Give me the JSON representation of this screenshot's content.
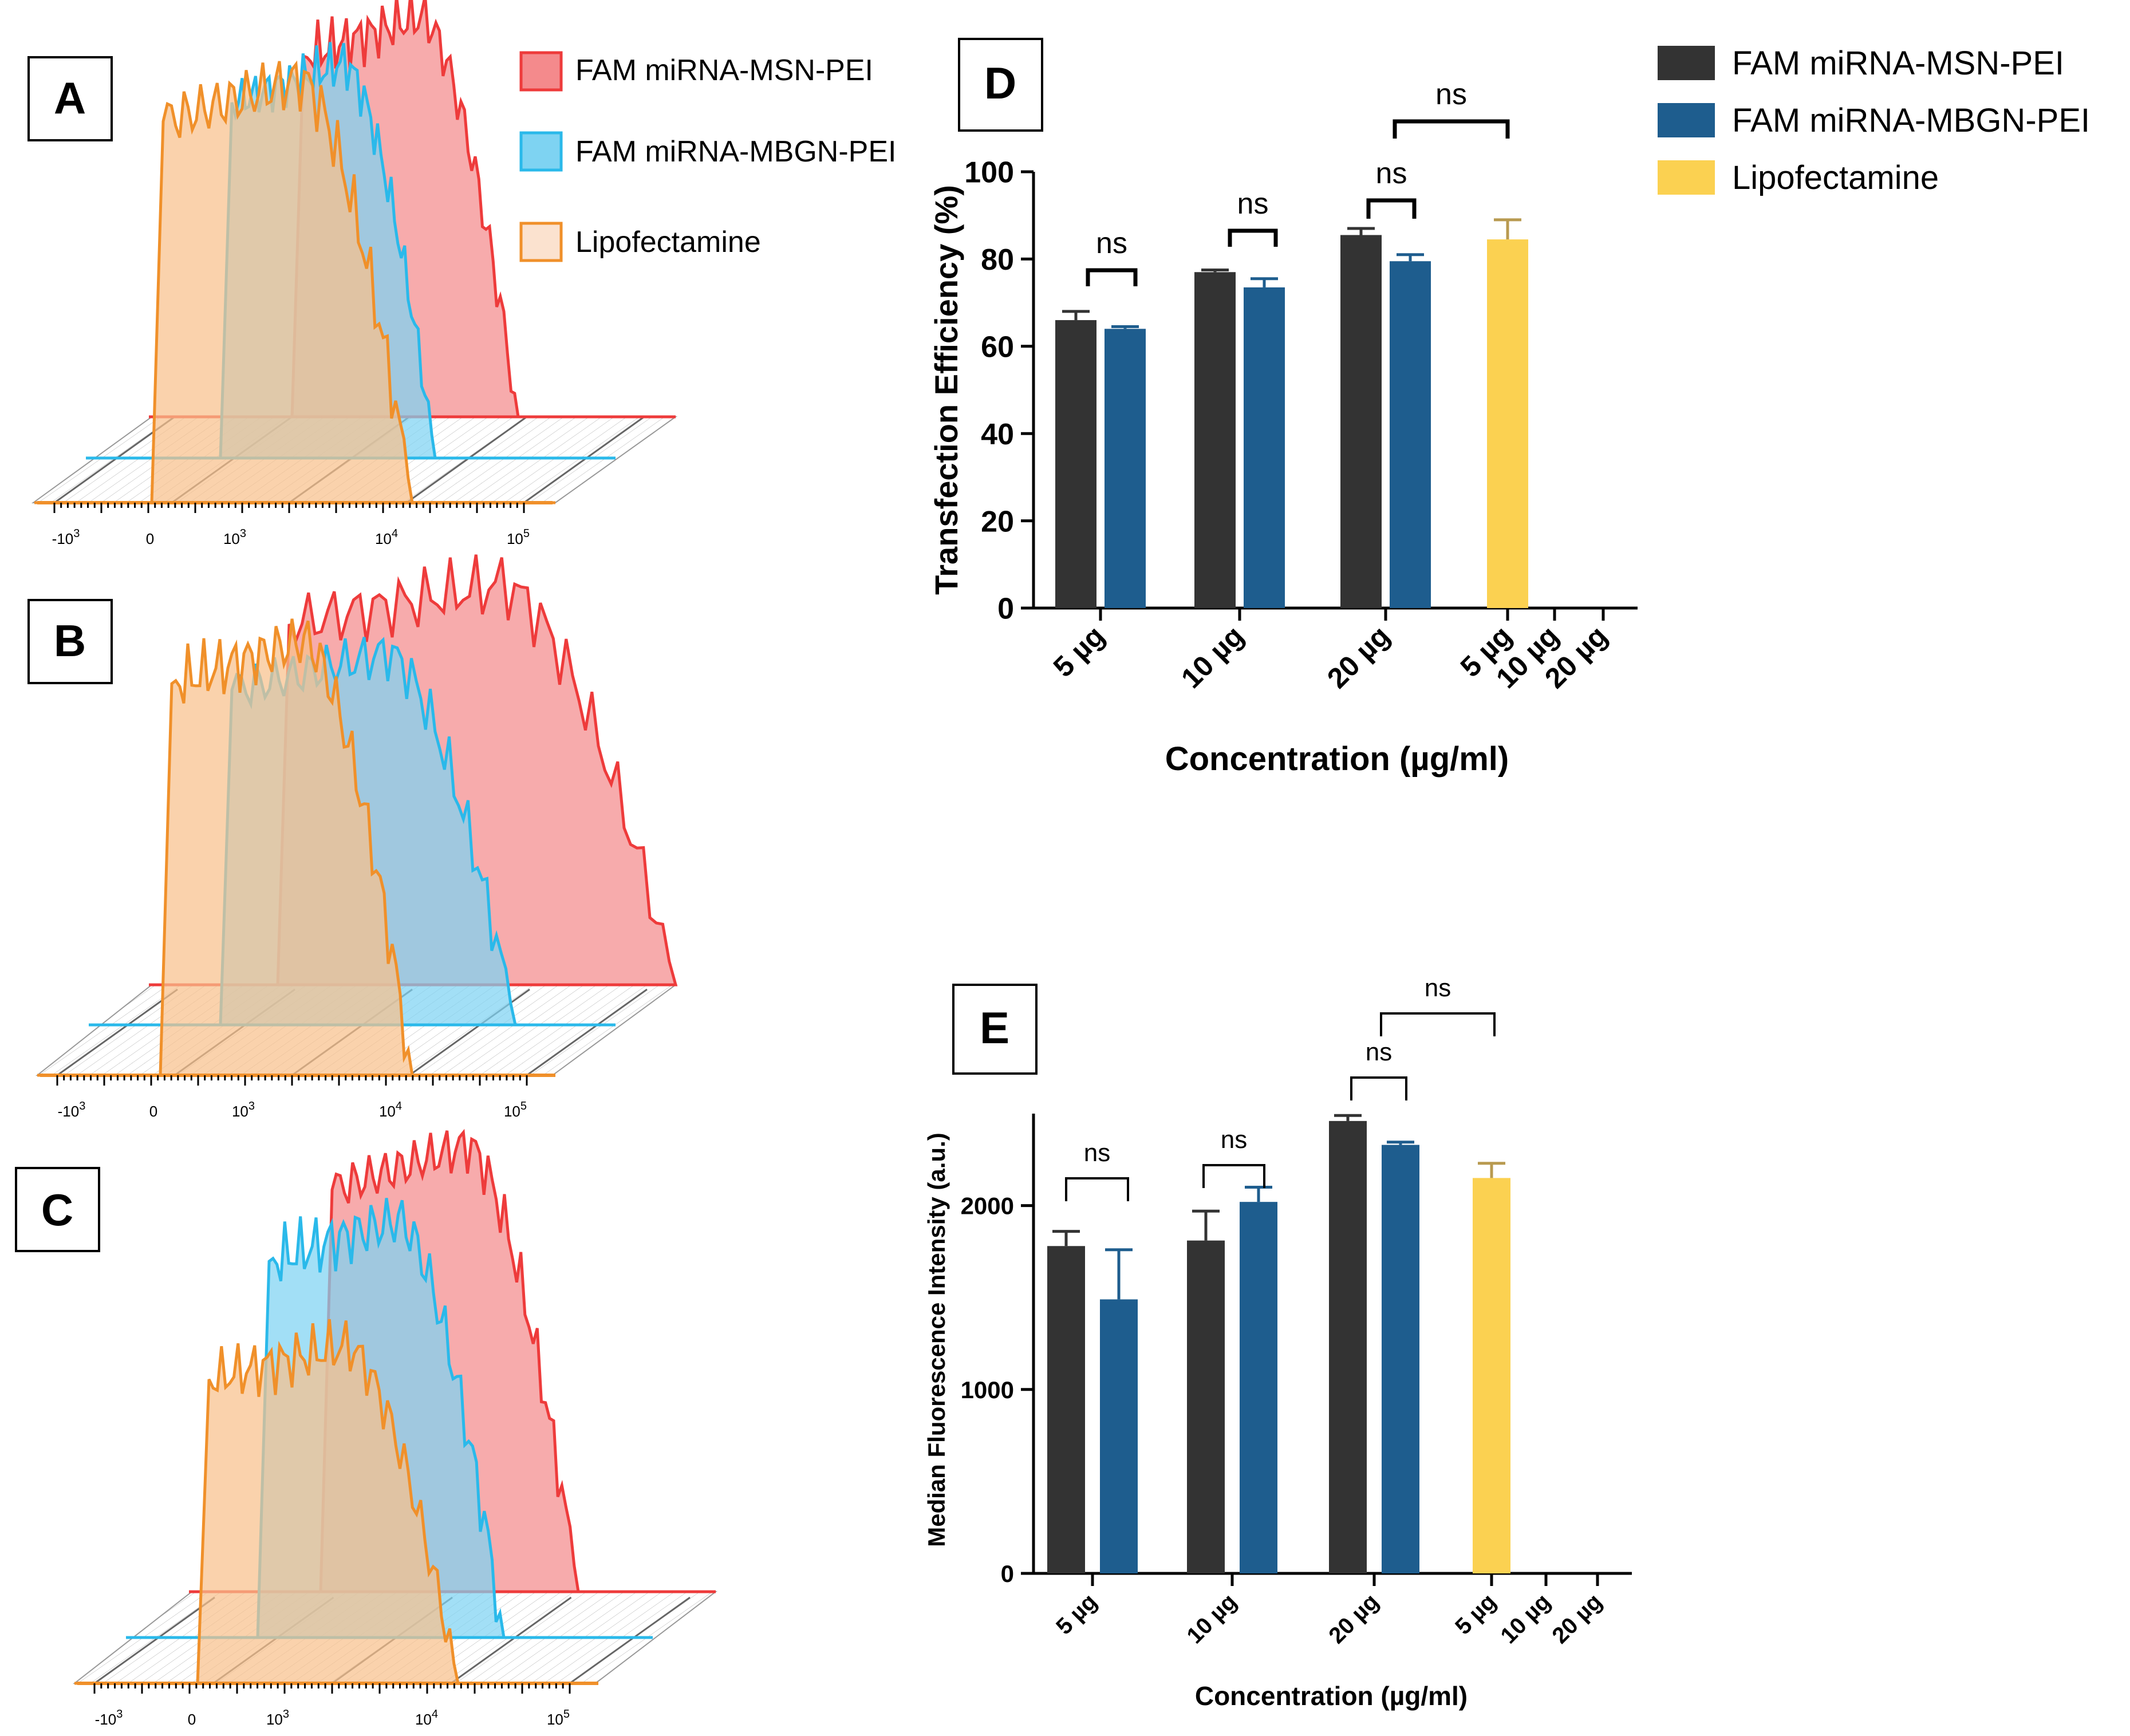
{
  "colors": {
    "msn": "#333333",
    "mbgn": "#1e5d8e",
    "lipo": "#fbd151",
    "hist_red_fill": "#f48a8c",
    "hist_red_line": "#ee3b3b",
    "hist_blue_fill": "#7ed3f2",
    "hist_blue_line": "#2ab9ea",
    "hist_orange_fill": "#f8c08c",
    "hist_orange_line": "#f0902a"
  },
  "panels": {
    "A": {
      "label": "A"
    },
    "B": {
      "label": "B"
    },
    "C": {
      "label": "C"
    },
    "D": {
      "label": "D"
    },
    "E": {
      "label": "E"
    }
  },
  "legend_left": {
    "items": [
      {
        "label": "FAM miRNA-MSN-PEI",
        "color": "#f48a8c",
        "edge": "#ee3b3b"
      },
      {
        "label": "FAM miRNA-MBGN-PEI",
        "color": "#7ed3f2",
        "edge": "#2ab9ea"
      },
      {
        "label": "Lipofectamine",
        "color": "#fbe2cf",
        "edge": "#f0902a"
      }
    ]
  },
  "legend_right": {
    "items": [
      {
        "label": "FAM miRNA-MSN-PEI",
        "color": "#333333"
      },
      {
        "label": "FAM miRNA-MBGN-PEI",
        "color": "#1e5d8e"
      },
      {
        "label": "Lipofectamine",
        "color": "#fbd151"
      }
    ]
  },
  "histogram_axis": {
    "tick_labels": [
      "-10",
      "0",
      "10",
      "10",
      "10"
    ],
    "tick_exps": [
      "3",
      "",
      "3",
      "4",
      "5"
    ]
  },
  "chart_data": [
    {
      "id": "D",
      "type": "bar",
      "title": "",
      "xlabel": "Concentration (µg/ml)",
      "ylabel": "Transfection Efficiency (%)",
      "ylim": [
        0,
        100
      ],
      "yticks": [
        0,
        20,
        40,
        60,
        80,
        100
      ],
      "categories": [
        "5 µg",
        "10 µg",
        "20 µg",
        "5 µg",
        "10 µg",
        "20 µg"
      ],
      "series": [
        {
          "name": "FAM miRNA-MSN-PEI",
          "values": [
            66,
            77,
            85.5,
            null,
            null,
            null
          ],
          "errors": [
            2,
            0.5,
            1.5,
            null,
            null,
            null
          ]
        },
        {
          "name": "FAM miRNA-MBGN-PEI",
          "values": [
            64,
            73.5,
            79.5,
            null,
            null,
            null
          ],
          "errors": [
            0.5,
            2,
            1.5,
            null,
            null,
            null
          ]
        },
        {
          "name": "Lipofectamine",
          "values": [
            null,
            null,
            null,
            84.5,
            0,
            0
          ],
          "errors": [
            null,
            null,
            null,
            4.5,
            null,
            null
          ]
        }
      ],
      "annotations": [
        "ns",
        "ns",
        "ns",
        "ns"
      ]
    },
    {
      "id": "E",
      "type": "bar",
      "title": "",
      "xlabel": "Concentration (µg/ml)",
      "ylabel": "Median Fluorescence Intensity (a.u.)",
      "ylim": [
        0,
        2500
      ],
      "yticks": [
        0,
        1000,
        2000
      ],
      "categories": [
        "5 µg",
        "10 µg",
        "20 µg",
        "5 µg",
        "10 µg",
        "20 µg"
      ],
      "series": [
        {
          "name": "FAM miRNA-MSN-PEI",
          "values": [
            1780,
            1810,
            2460,
            null,
            null,
            null
          ],
          "errors": [
            80,
            160,
            30,
            null,
            null,
            null
          ]
        },
        {
          "name": "FAM miRNA-MBGN-PEI",
          "values": [
            1490,
            2020,
            2330,
            null,
            null,
            null
          ],
          "errors": [
            270,
            80,
            15,
            null,
            null,
            null
          ]
        },
        {
          "name": "Lipofectamine",
          "values": [
            null,
            null,
            null,
            2150,
            0,
            0
          ],
          "errors": [
            null,
            null,
            null,
            80,
            null,
            null
          ]
        }
      ],
      "annotations": [
        "ns",
        "ns",
        "ns",
        "ns"
      ]
    }
  ]
}
